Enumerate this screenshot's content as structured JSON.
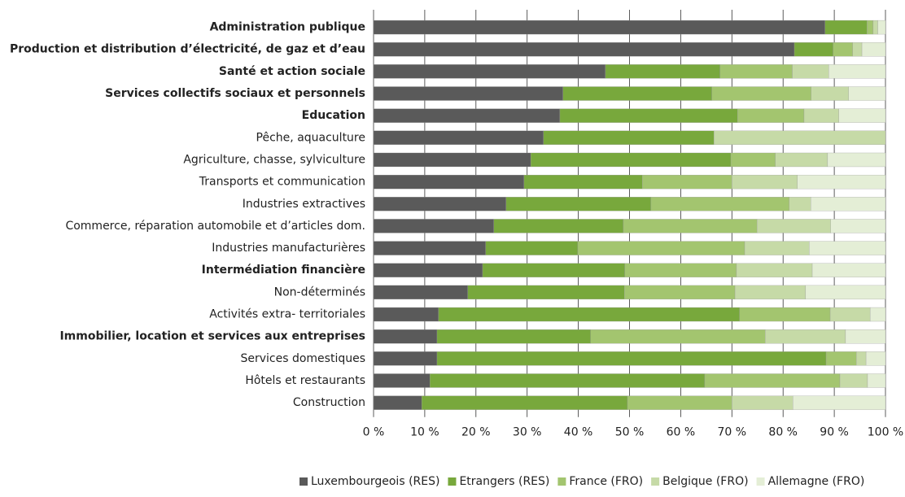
{
  "chart_data": {
    "type": "stacked_barh",
    "categories": [
      "Administration publique",
      "Production et distribution d’électricité, de gaz et d’eau",
      "Santé et action sociale",
      "Services collectifs sociaux et personnels",
      "Education",
      "Pêche, aquaculture",
      "Agriculture, chasse, sylviculture",
      "Transports et communication",
      "Industries extractives",
      "Commerce, réparation automobile et d’articles dom.",
      "Industries manufacturières",
      "Intermédiation financière",
      "Non-déterminés",
      "Activités extra- territoriales",
      "Immobilier, location et services aux entreprises",
      "Services domestiques",
      "Hôtels et restaurants",
      "Construction"
    ],
    "bold": [
      true,
      true,
      true,
      true,
      true,
      false,
      false,
      false,
      false,
      false,
      false,
      true,
      false,
      false,
      true,
      false,
      false,
      false
    ],
    "series": [
      {
        "name": "Luxembourgeois (RES)",
        "color": "#5a5a5a",
        "values": [
          88.2,
          82.2,
          45.3,
          37.0,
          36.4,
          33.2,
          30.7,
          29.4,
          25.9,
          23.5,
          21.9,
          21.3,
          18.4,
          12.7,
          12.4,
          12.4,
          11.0,
          9.4
        ]
      },
      {
        "name": "Etrangers (RES)",
        "color": "#78a83c",
        "values": [
          8.2,
          7.6,
          22.4,
          29.1,
          34.7,
          33.3,
          39.1,
          23.1,
          28.3,
          25.3,
          18.0,
          27.8,
          30.6,
          58.8,
          30.0,
          76.0,
          53.7,
          40.2
        ]
      },
      {
        "name": "France (FRO)",
        "color": "#a3c56f",
        "values": [
          1.2,
          3.8,
          14.1,
          19.4,
          13.0,
          0,
          8.7,
          17.5,
          27.0,
          26.1,
          32.6,
          21.8,
          21.6,
          17.7,
          34.1,
          5.9,
          26.4,
          20.4
        ]
      },
      {
        "name": "Belgique (FRO)",
        "color": "#c6daa7",
        "values": [
          0.9,
          1.8,
          7.1,
          7.3,
          6.8,
          33.5,
          10.2,
          12.8,
          4.2,
          14.4,
          12.6,
          14.8,
          13.8,
          7.8,
          15.7,
          1.9,
          5.4,
          11.9
        ]
      },
      {
        "name": "Allemagne (FRO)",
        "color": "#e4eed6",
        "values": [
          1.5,
          4.6,
          11.1,
          7.2,
          9.1,
          0,
          11.3,
          17.2,
          14.6,
          10.7,
          14.9,
          14.3,
          15.6,
          3.0,
          7.8,
          3.8,
          3.5,
          18.1
        ]
      }
    ],
    "xlim": [
      0,
      100
    ],
    "xticks": [
      {
        "value": 0,
        "label": "0 %"
      },
      {
        "value": 10,
        "label": "10 %"
      },
      {
        "value": 20,
        "label": "20 %"
      },
      {
        "value": 30,
        "label": "30 %"
      },
      {
        "value": 40,
        "label": "40 %"
      },
      {
        "value": 50,
        "label": "50 %"
      },
      {
        "value": 60,
        "label": "60 %"
      },
      {
        "value": 70,
        "label": "70 %"
      },
      {
        "value": 80,
        "label": "80 %"
      },
      {
        "value": 90,
        "label": "90 %"
      },
      {
        "value": 100,
        "label": "100 %"
      }
    ],
    "grid": true,
    "legend": "bottom"
  }
}
